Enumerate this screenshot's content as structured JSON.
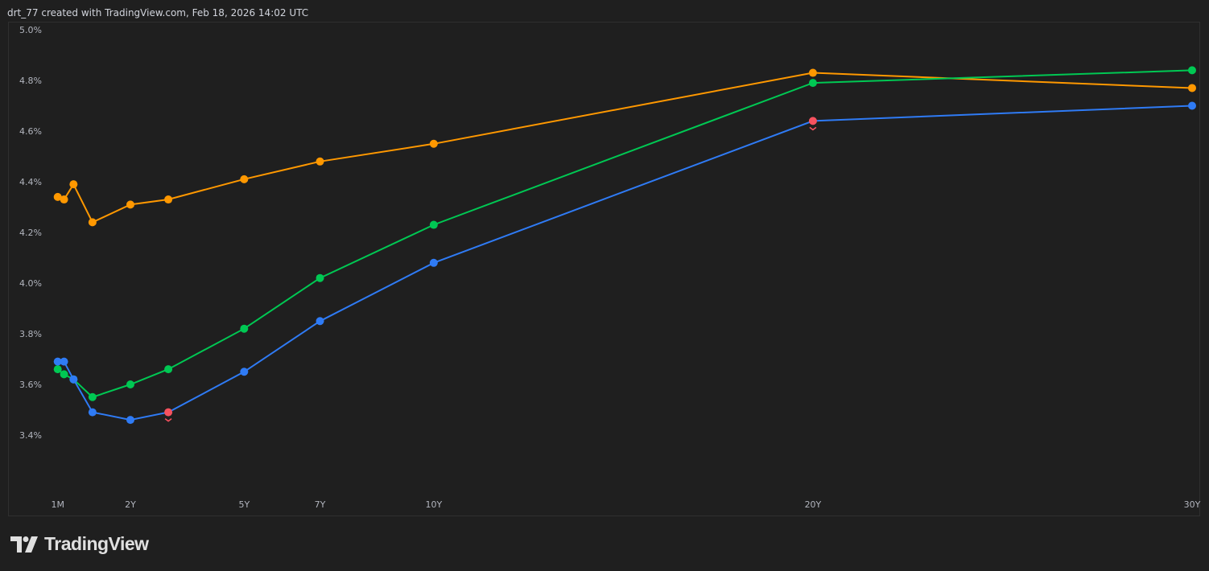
{
  "header": {
    "text": "drt_77 created with TradingView.com, Feb 18, 2026 14:02 UTC"
  },
  "logo": {
    "text": "TradingView"
  },
  "colors": {
    "background": "#1f1f1f",
    "grid_border": "#2f2f2f",
    "highlight": "#f7525f"
  },
  "chart_data": {
    "type": "line",
    "title": "",
    "xlabel": "",
    "ylabel": "",
    "ylim": [
      3.2,
      5.0
    ],
    "grid": false,
    "y_ticks": [
      "5.0%",
      "4.8%",
      "4.6%",
      "4.4%",
      "4.2%",
      "4.0%",
      "3.8%",
      "3.6%",
      "3.4%"
    ],
    "y_tick_values": [
      5.0,
      4.8,
      4.6,
      4.4,
      4.2,
      4.0,
      3.8,
      3.6,
      3.4
    ],
    "x_tick_labels": [
      "1M",
      "2Y",
      "5Y",
      "7Y",
      "10Y",
      "20Y",
      "30Y"
    ],
    "x_tick_values": [
      0.0833,
      2,
      5,
      7,
      10,
      20,
      30
    ],
    "tenors": [
      "1M",
      "3M",
      "6M",
      "1Y",
      "2Y",
      "3Y",
      "5Y",
      "7Y",
      "10Y",
      "20Y",
      "30Y"
    ],
    "x": [
      0.0833,
      0.25,
      0.5,
      1,
      2,
      3,
      5,
      7,
      10,
      20,
      30
    ],
    "series": [
      {
        "color": "#ff9800",
        "values": [
          4.34,
          4.33,
          4.39,
          4.24,
          4.31,
          4.33,
          4.41,
          4.48,
          4.55,
          4.83,
          4.77
        ]
      },
      {
        "color": "#00c853",
        "values": [
          3.66,
          3.64,
          3.62,
          3.55,
          3.6,
          3.66,
          3.82,
          4.02,
          4.23,
          4.79,
          4.84
        ]
      },
      {
        "color": "#2f7bf5",
        "values": [
          3.69,
          3.69,
          3.62,
          3.49,
          3.46,
          3.49,
          3.65,
          3.85,
          4.08,
          4.64,
          4.7
        ]
      }
    ],
    "highlighted_points": [
      {
        "series": 2,
        "tenor": "3Y",
        "marker": "chevron-down"
      },
      {
        "series": 2,
        "tenor": "20Y",
        "marker": "chevron-down"
      }
    ]
  }
}
